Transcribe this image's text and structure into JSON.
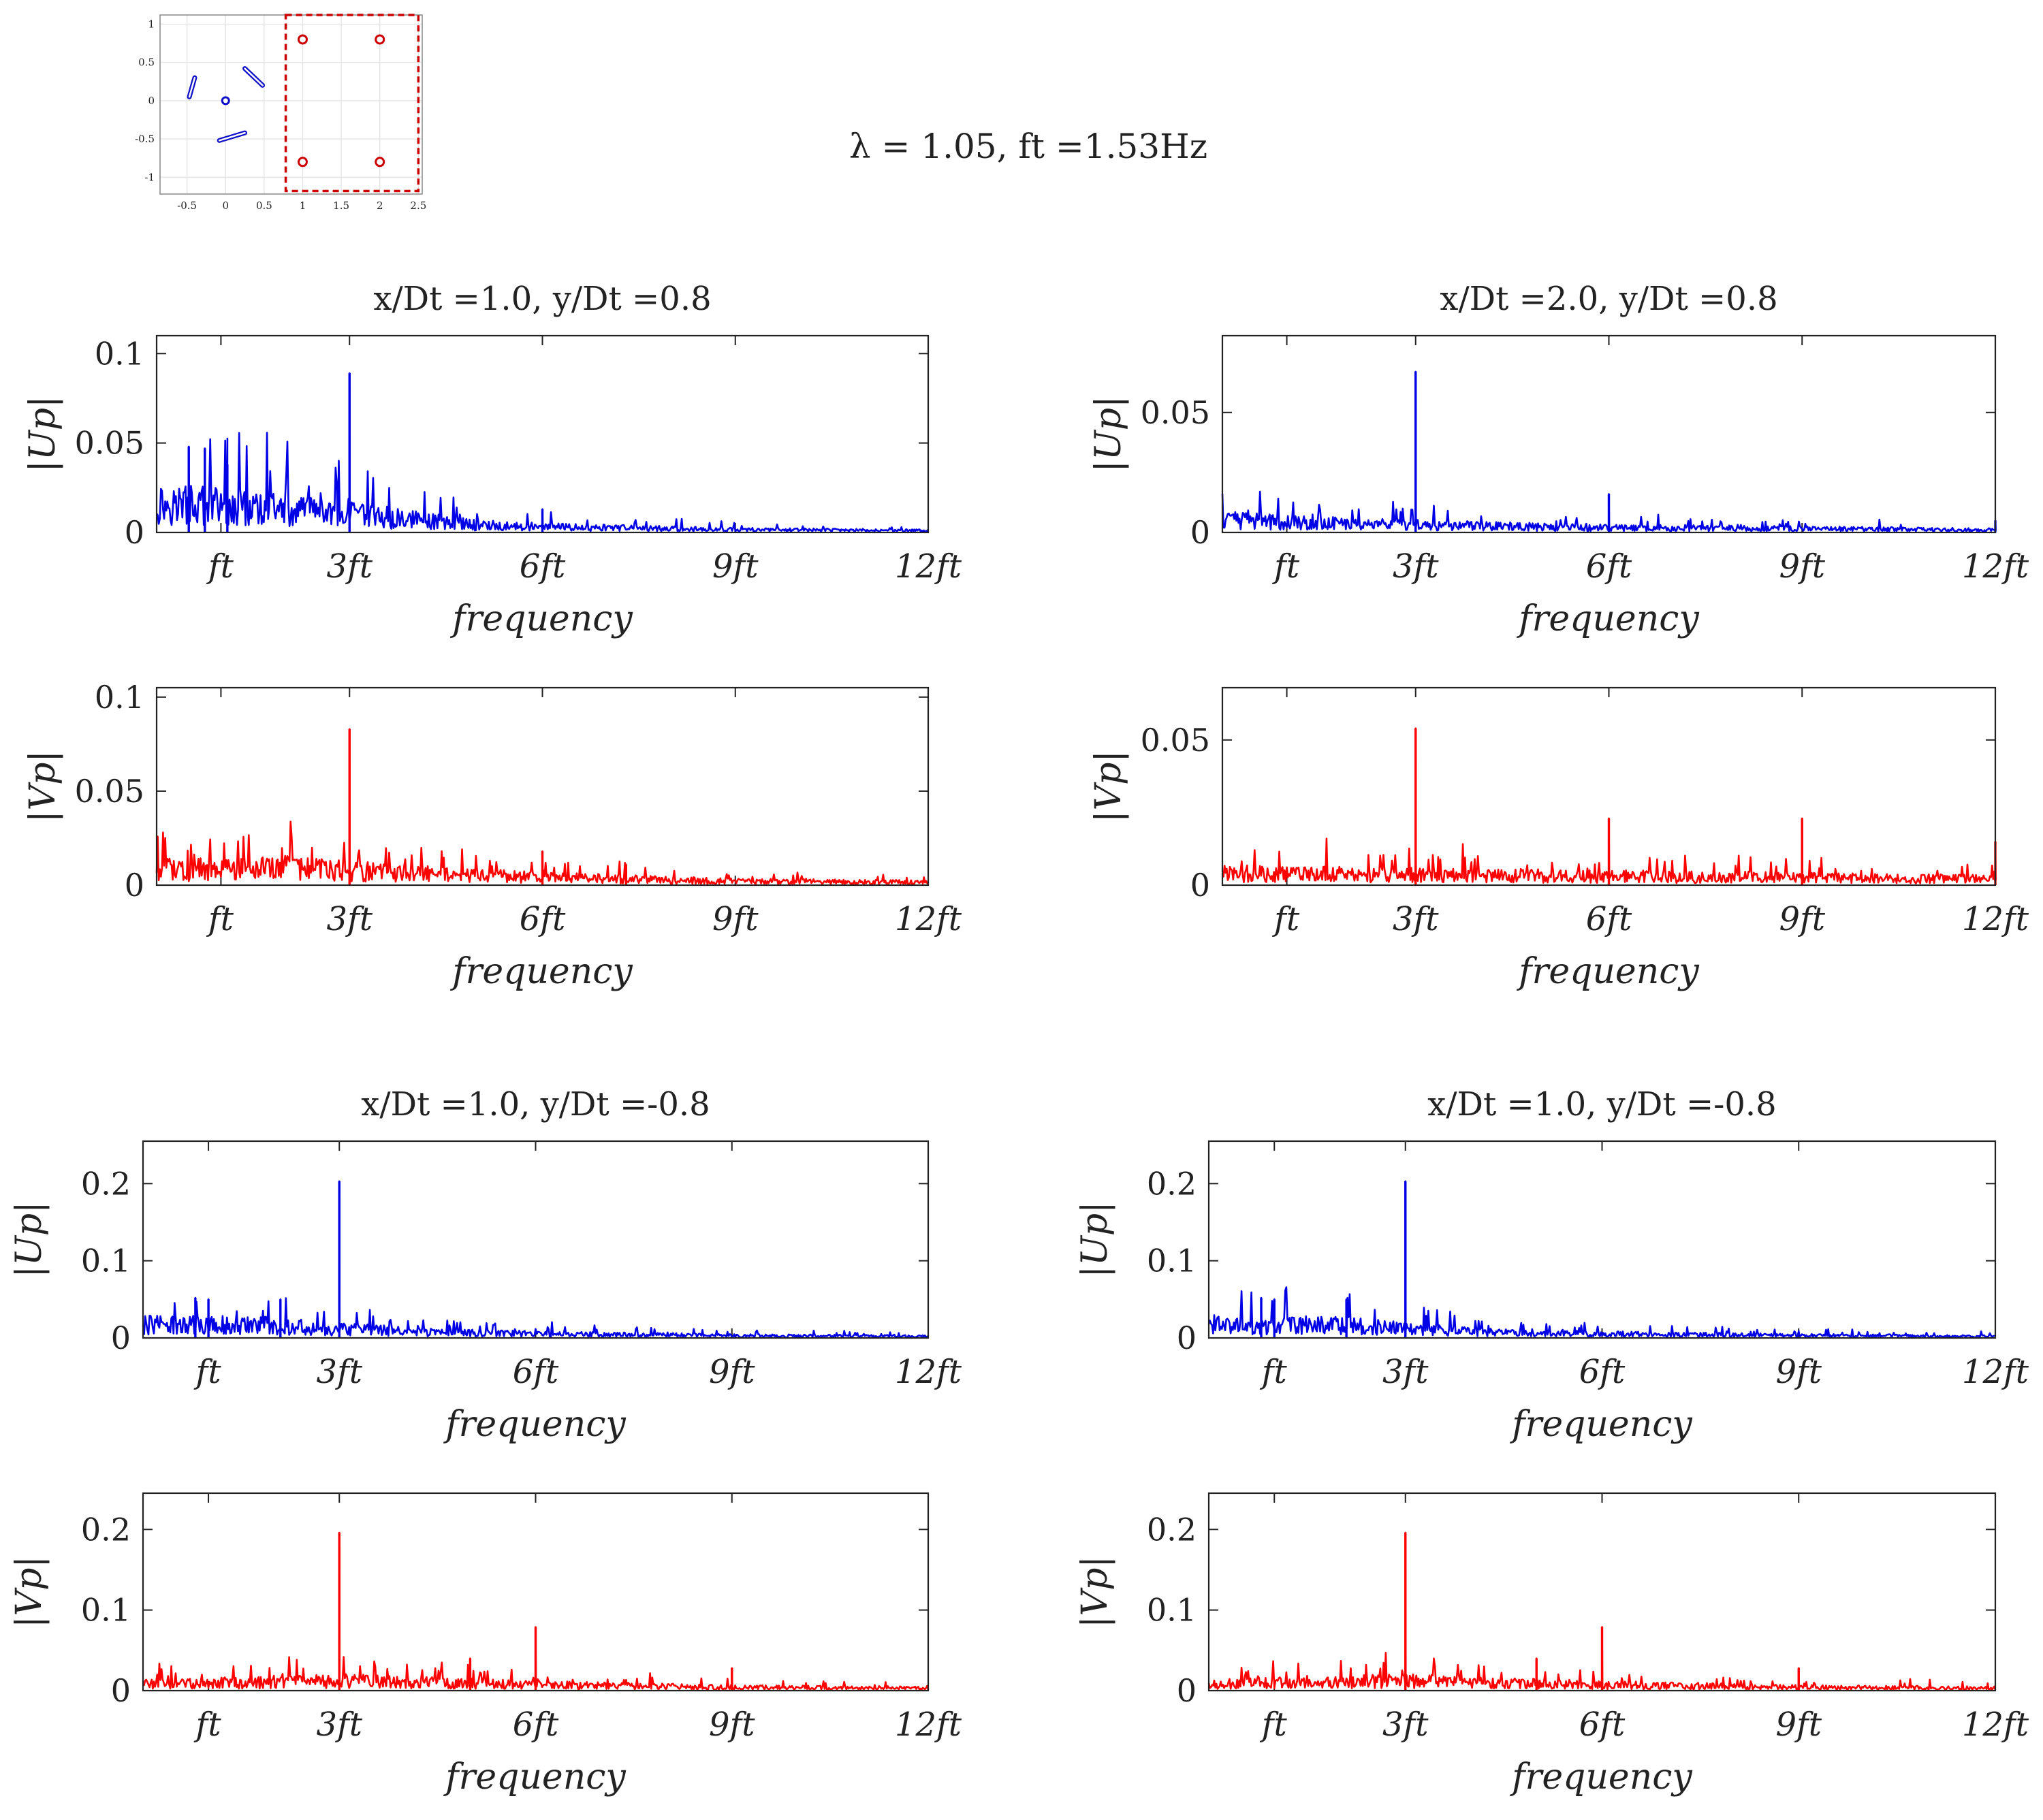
{
  "figure": {
    "suptitle": "λ = 1.05, ft =1.53Hz",
    "fundamental_hz": 1.53,
    "line_colors": {
      "u": "#0000e6",
      "v": "#ff0000"
    },
    "axes_color": "#222222"
  },
  "inset": {
    "x_ticks": [
      "-0.5",
      "0",
      "0.5",
      "1",
      "1.5",
      "2",
      "2.5"
    ],
    "y_ticks": [
      "1",
      "0.5",
      "0",
      "-0.5",
      "-1"
    ],
    "turbine_hub": [
      0,
      0
    ],
    "blades": [
      {
        "x1": -0.47,
        "y1": 0.05,
        "x2": -0.4,
        "y2": 0.3
      },
      {
        "x1": 0.25,
        "y1": 0.42,
        "x2": 0.48,
        "y2": 0.2
      },
      {
        "x1": -0.08,
        "y1": -0.52,
        "x2": 0.25,
        "y2": -0.42
      }
    ],
    "probes": [
      [
        1.0,
        0.8
      ],
      [
        2.0,
        0.8
      ],
      [
        1.0,
        -0.8
      ],
      [
        2.0,
        -0.8
      ]
    ],
    "highlight_box": {
      "x": [
        0.78,
        2.5
      ],
      "y": [
        -1.18,
        1.12
      ]
    },
    "xlim": [
      -0.85,
      2.55
    ],
    "ylim": [
      -1.22,
      1.12
    ]
  },
  "chart_data": [
    {
      "type": "line",
      "panel_title": "x/Dt =1.0, y/Dt =0.8",
      "component": "u",
      "ylabel": "|Up|",
      "xlabel": "frequency",
      "x_unit": "ft",
      "xlim": [
        0,
        12
      ],
      "ylim": [
        0,
        0.11
      ],
      "yticks": [
        0,
        0.05,
        0.1
      ],
      "ytick_labels": [
        "0",
        "0.05",
        "0.1"
      ],
      "xticks": [
        1,
        3,
        6,
        9,
        12
      ],
      "xtick_labels": [
        "ft",
        "3ft",
        "6ft",
        "9ft",
        "12ft"
      ],
      "noise_profile": [
        [
          0,
          0.016
        ],
        [
          1,
          0.015
        ],
        [
          2,
          0.012
        ],
        [
          3,
          0.01
        ],
        [
          4,
          0.007
        ],
        [
          5,
          0.004
        ],
        [
          6,
          0.003
        ],
        [
          9,
          0.0015
        ],
        [
          12,
          0.001
        ]
      ],
      "peaks": [
        [
          0.5,
          0.048
        ],
        [
          0.75,
          0.047
        ],
        [
          1.1,
          0.038
        ],
        [
          3.0,
          0.089
        ],
        [
          6.0,
          0.013
        ]
      ]
    },
    {
      "type": "line",
      "panel_title": "x/Dt =2.0, y/Dt =0.8",
      "component": "u",
      "ylabel": "|Up|",
      "xlabel": "frequency",
      "x_unit": "ft",
      "xlim": [
        0,
        12
      ],
      "ylim": [
        0,
        0.082
      ],
      "yticks": [
        0,
        0.05
      ],
      "ytick_labels": [
        "0",
        "0.05"
      ],
      "xticks": [
        1,
        3,
        6,
        9,
        12
      ],
      "xtick_labels": [
        "ft",
        "3ft",
        "6ft",
        "9ft",
        "12ft"
      ],
      "noise_profile": [
        [
          0,
          0.005
        ],
        [
          3,
          0.003
        ],
        [
          6,
          0.002
        ],
        [
          12,
          0.001
        ]
      ],
      "peaks": [
        [
          3.0,
          0.067
        ],
        [
          6.0,
          0.016
        ],
        [
          12.0,
          0.005
        ]
      ]
    },
    {
      "type": "line",
      "panel_title": "x/Dt =1.0, y/Dt =0.8",
      "component": "v",
      "ylabel": "|Vp|",
      "xlabel": "frequency",
      "x_unit": "ft",
      "xlim": [
        0,
        12
      ],
      "ylim": [
        0,
        0.105
      ],
      "yticks": [
        0,
        0.05,
        0.1
      ],
      "ytick_labels": [
        "0",
        "0.05",
        "0.1"
      ],
      "xticks": [
        1,
        3,
        6,
        9,
        12
      ],
      "xtick_labels": [
        "ft",
        "3ft",
        "6ft",
        "9ft",
        "12ft"
      ],
      "noise_profile": [
        [
          0,
          0.008
        ],
        [
          2,
          0.009
        ],
        [
          4,
          0.006
        ],
        [
          6,
          0.004
        ],
        [
          9,
          0.002
        ],
        [
          12,
          0.0015
        ]
      ],
      "peaks": [
        [
          3.0,
          0.083
        ],
        [
          6.0,
          0.018
        ],
        [
          7.3,
          0.011
        ]
      ]
    },
    {
      "type": "line",
      "panel_title": "x/Dt =2.0, y/Dt =0.8",
      "component": "v",
      "ylabel": "|Vp|",
      "xlabel": "frequency",
      "x_unit": "ft",
      "xlim": [
        0,
        12
      ],
      "ylim": [
        0,
        0.068
      ],
      "yticks": [
        0,
        0.05
      ],
      "ytick_labels": [
        "0",
        "0.05"
      ],
      "xticks": [
        1,
        3,
        6,
        9,
        12
      ],
      "xtick_labels": [
        "ft",
        "3ft",
        "6ft",
        "9ft",
        "12ft"
      ],
      "noise_profile": [
        [
          0,
          0.004
        ],
        [
          6,
          0.003
        ],
        [
          12,
          0.002
        ]
      ],
      "peaks": [
        [
          3.0,
          0.054
        ],
        [
          6.0,
          0.023
        ],
        [
          9.0,
          0.023
        ],
        [
          12.0,
          0.015
        ]
      ]
    },
    {
      "type": "line",
      "panel_title": "x/Dt =1.0, y/Dt =-0.8",
      "component": "u",
      "ylabel": "|Up|",
      "xlabel": "frequency",
      "x_unit": "ft",
      "xlim": [
        0,
        12
      ],
      "ylim": [
        0,
        0.255
      ],
      "yticks": [
        0,
        0.1,
        0.2
      ],
      "ytick_labels": [
        "0",
        "0.1",
        "0.2"
      ],
      "xticks": [
        1,
        3,
        6,
        9,
        12
      ],
      "xtick_labels": [
        "ft",
        "3ft",
        "6ft",
        "9ft",
        "12ft"
      ],
      "noise_profile": [
        [
          0,
          0.017
        ],
        [
          2,
          0.016
        ],
        [
          3,
          0.012
        ],
        [
          4,
          0.008
        ],
        [
          6,
          0.005
        ],
        [
          9,
          0.003
        ],
        [
          12,
          0.002
        ]
      ],
      "peaks": [
        [
          0.8,
          0.052
        ],
        [
          1.0,
          0.05
        ],
        [
          2.1,
          0.05
        ],
        [
          3.0,
          0.203
        ]
      ]
    },
    {
      "type": "line",
      "panel_title": "x/Dt =1.0, y/Dt =-0.8",
      "component": "u",
      "ylabel": "|Up|",
      "xlabel": "frequency",
      "x_unit": "ft",
      "xlim": [
        0,
        12
      ],
      "ylim": [
        0,
        0.255
      ],
      "yticks": [
        0,
        0.1,
        0.2
      ],
      "ytick_labels": [
        "0",
        "0.1",
        "0.2"
      ],
      "xticks": [
        1,
        3,
        6,
        9,
        12
      ],
      "xtick_labels": [
        "ft",
        "3ft",
        "6ft",
        "9ft",
        "12ft"
      ],
      "noise_profile": [
        [
          0,
          0.017
        ],
        [
          2,
          0.016
        ],
        [
          3,
          0.012
        ],
        [
          4,
          0.008
        ],
        [
          6,
          0.005
        ],
        [
          9,
          0.003
        ],
        [
          12,
          0.002
        ]
      ],
      "peaks": [
        [
          0.8,
          0.052
        ],
        [
          1.0,
          0.05
        ],
        [
          2.1,
          0.05
        ],
        [
          3.0,
          0.203
        ]
      ]
    },
    {
      "type": "line",
      "panel_title": "x/Dt =1.0, y/Dt =-0.8",
      "component": "v",
      "ylabel": "|Vp|",
      "xlabel": "frequency",
      "x_unit": "ft",
      "xlim": [
        0,
        12
      ],
      "ylim": [
        0,
        0.245
      ],
      "yticks": [
        0,
        0.1,
        0.2
      ],
      "ytick_labels": [
        "0",
        "0.1",
        "0.2"
      ],
      "xticks": [
        1,
        3,
        6,
        9,
        12
      ],
      "xtick_labels": [
        "ft",
        "3ft",
        "6ft",
        "9ft",
        "12ft"
      ],
      "noise_profile": [
        [
          0,
          0.008
        ],
        [
          3,
          0.012
        ],
        [
          6,
          0.007
        ],
        [
          9,
          0.004
        ],
        [
          12,
          0.003
        ]
      ],
      "peaks": [
        [
          3.0,
          0.196
        ],
        [
          5.0,
          0.04
        ],
        [
          6.0,
          0.079
        ],
        [
          9.0,
          0.028
        ]
      ]
    },
    {
      "type": "line",
      "panel_title": "x/Dt =1.0, y/Dt =-0.8",
      "component": "v",
      "ylabel": "|Vp|",
      "xlabel": "frequency",
      "x_unit": "ft",
      "xlim": [
        0,
        12
      ],
      "ylim": [
        0,
        0.245
      ],
      "yticks": [
        0,
        0.1,
        0.2
      ],
      "ytick_labels": [
        "0",
        "0.1",
        "0.2"
      ],
      "xticks": [
        1,
        3,
        6,
        9,
        12
      ],
      "xtick_labels": [
        "ft",
        "3ft",
        "6ft",
        "9ft",
        "12ft"
      ],
      "noise_profile": [
        [
          0,
          0.008
        ],
        [
          3,
          0.012
        ],
        [
          6,
          0.007
        ],
        [
          9,
          0.004
        ],
        [
          12,
          0.003
        ]
      ],
      "peaks": [
        [
          3.0,
          0.196
        ],
        [
          5.0,
          0.04
        ],
        [
          6.0,
          0.079
        ],
        [
          9.0,
          0.028
        ]
      ]
    }
  ]
}
